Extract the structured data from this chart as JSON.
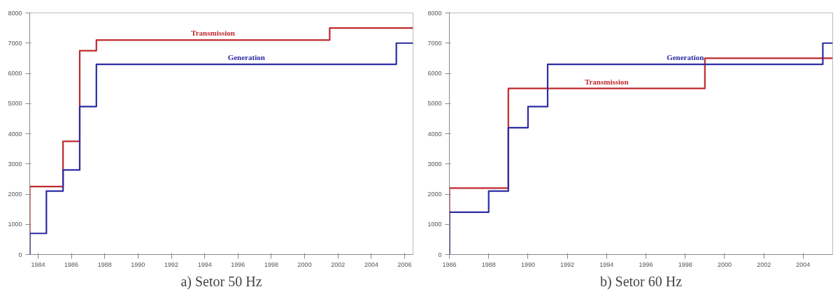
{
  "chart_data": [
    {
      "type": "step",
      "title": "a) Setor 50 Hz",
      "xlim": [
        1984,
        2007
      ],
      "ylim": [
        0,
        8000
      ],
      "xticks": [
        {
          "value": 1984.5,
          "label": "1984"
        },
        {
          "value": 1986.5,
          "label": "1986"
        },
        {
          "value": 1988.5,
          "label": "1988"
        },
        {
          "value": 1990.5,
          "label": "1990"
        },
        {
          "value": 1992.5,
          "label": "1992"
        },
        {
          "value": 1994.5,
          "label": "1994"
        },
        {
          "value": 1996.5,
          "label": "1996"
        },
        {
          "value": 1998.5,
          "label": "1998"
        },
        {
          "value": 2000.5,
          "label": "2000"
        },
        {
          "value": 2002.5,
          "label": "2002"
        },
        {
          "value": 2004.5,
          "label": "2004"
        },
        {
          "value": 2006.5,
          "label": "2006"
        }
      ],
      "yticks": [
        0,
        1000,
        2000,
        3000,
        4000,
        5000,
        6000,
        7000,
        8000
      ],
      "grid": false,
      "legend": false,
      "series": [
        {
          "name": "Transmission",
          "color": "#c0282d",
          "x": [
            1984,
            1984,
            1986,
            1987,
            1988,
            2002,
            2007
          ],
          "values": [
            0,
            2250,
            3750,
            6750,
            7100,
            7500,
            7500
          ]
        },
        {
          "name": "Generation",
          "color": "#2b2ba3",
          "x": [
            1984,
            1984,
            1985,
            1986,
            1987,
            1988,
            2006,
            2007
          ],
          "values": [
            0,
            700,
            2100,
            2800,
            4900,
            6300,
            7000,
            7000
          ]
        }
      ]
    },
    {
      "type": "step",
      "title": "b) Setor 60 Hz",
      "xlim": [
        1986,
        2005.5
      ],
      "ylim": [
        0,
        8000
      ],
      "xticks": [
        1986,
        1988,
        1990,
        1992,
        1994,
        1996,
        1998,
        2000,
        2002,
        2004
      ],
      "yticks": [
        0,
        1000,
        2000,
        3000,
        4000,
        5000,
        6000,
        7000,
        8000
      ],
      "grid": false,
      "legend": false,
      "series": [
        {
          "name": "Transmission",
          "color": "#c0282d",
          "x": [
            1986,
            1986,
            1989,
            1999,
            2005.5
          ],
          "values": [
            0,
            2200,
            5500,
            6500,
            6500
          ]
        },
        {
          "name": "Generation",
          "color": "#2b2ba3",
          "x": [
            1986,
            1986,
            1988,
            1989,
            1990,
            1991,
            2005,
            2005.5
          ],
          "values": [
            0,
            1400,
            2100,
            4200,
            4900,
            6300,
            7000,
            7000
          ]
        }
      ]
    }
  ]
}
